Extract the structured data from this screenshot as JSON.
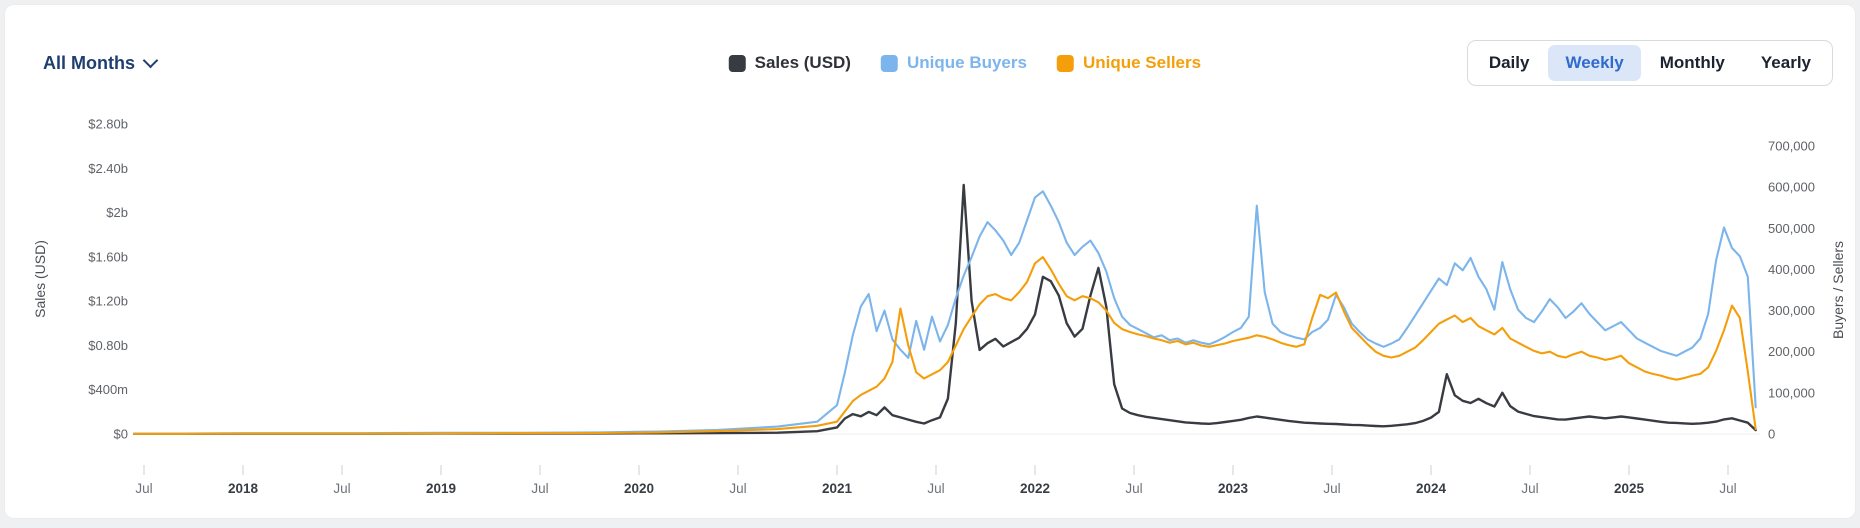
{
  "colors": {
    "accent_blue": "#2f6bcc",
    "active_button_bg": "#dbe6f8",
    "navy": "#1e3f6f",
    "sales_line": "#383c42",
    "buyers_line": "#7cb5ec",
    "sellers_line": "#f59e0b"
  },
  "header": {
    "filter": {
      "label": "All Months"
    },
    "legend": [
      {
        "name": "Sales (USD)",
        "color": "#383c42",
        "text_color": "#2f3237"
      },
      {
        "name": "Unique Buyers",
        "color": "#7cb5ec",
        "text_color": "#7cb5ec"
      },
      {
        "name": "Unique Sellers",
        "color": "#f59e0b",
        "text_color": "#f59e0b"
      }
    ],
    "range_buttons": [
      {
        "label": "Daily",
        "active": false
      },
      {
        "label": "Weekly",
        "active": true
      },
      {
        "label": "Monthly",
        "active": false
      },
      {
        "label": "Yearly",
        "active": false
      }
    ]
  },
  "chart_data": {
    "type": "line",
    "interval": "weekly",
    "grid": false,
    "legend_position": "top",
    "x_unit": "decimal_year",
    "x_range": [
      2017.45,
      2025.66
    ],
    "left_axis": {
      "title": "Sales (USD)",
      "unit": "million_usd",
      "max_value": 2800,
      "ticks": [
        {
          "label": "$0",
          "value": 0
        },
        {
          "label": "$400m",
          "value": 400
        },
        {
          "label": "$0.80b",
          "value": 800
        },
        {
          "label": "$1.20b",
          "value": 1200
        },
        {
          "label": "$1.60b",
          "value": 1600
        },
        {
          "label": "$2b",
          "value": 2000
        },
        {
          "label": "$2.40b",
          "value": 2400
        },
        {
          "label": "$2.80b",
          "value": 2800
        }
      ]
    },
    "right_axis": {
      "title": "Buyers / Sellers",
      "unit": "count_thousands",
      "max_value": 700,
      "ticks": [
        {
          "label": "0",
          "value": 0
        },
        {
          "label": "100,000",
          "value": 100
        },
        {
          "label": "200,000",
          "value": 200
        },
        {
          "label": "300,000",
          "value": 300
        },
        {
          "label": "400,000",
          "value": 400
        },
        {
          "label": "500,000",
          "value": 500
        },
        {
          "label": "600,000",
          "value": 600
        },
        {
          "label": "700,000",
          "value": 700
        }
      ]
    },
    "x_ticks": [
      {
        "label": "Jul",
        "t": 2017.5,
        "year": false
      },
      {
        "label": "2018",
        "t": 2018,
        "year": true
      },
      {
        "label": "Jul",
        "t": 2018.5,
        "year": false
      },
      {
        "label": "2019",
        "t": 2019,
        "year": true
      },
      {
        "label": "Jul",
        "t": 2019.5,
        "year": false
      },
      {
        "label": "2020",
        "t": 2020,
        "year": true
      },
      {
        "label": "Jul",
        "t": 2020.5,
        "year": false
      },
      {
        "label": "2021",
        "t": 2021,
        "year": true
      },
      {
        "label": "Jul",
        "t": 2021.5,
        "year": false
      },
      {
        "label": "2022",
        "t": 2022,
        "year": true
      },
      {
        "label": "Jul",
        "t": 2022.5,
        "year": false
      },
      {
        "label": "2023",
        "t": 2023,
        "year": true
      },
      {
        "label": "Jul",
        "t": 2023.5,
        "year": false
      },
      {
        "label": "2024",
        "t": 2024,
        "year": true
      },
      {
        "label": "Jul",
        "t": 2024.5,
        "year": false
      },
      {
        "label": "2025",
        "t": 2025,
        "year": true
      },
      {
        "label": "Jul",
        "t": 2025.5,
        "year": false
      }
    ],
    "x": [
      2017.45,
      2017.7,
      2018,
      2018.3,
      2018.6,
      2019,
      2019.4,
      2019.8,
      2020.1,
      2020.4,
      2020.7,
      2020.9,
      2021,
      2021.04,
      2021.08,
      2021.12,
      2021.16,
      2021.2,
      2021.24,
      2021.28,
      2021.32,
      2021.36,
      2021.4,
      2021.44,
      2021.48,
      2021.52,
      2021.56,
      2021.6,
      2021.64,
      2021.68,
      2021.72,
      2021.76,
      2021.8,
      2021.84,
      2021.88,
      2021.92,
      2021.96,
      2022,
      2022.04,
      2022.08,
      2022.12,
      2022.16,
      2022.2,
      2022.24,
      2022.28,
      2022.32,
      2022.36,
      2022.4,
      2022.44,
      2022.48,
      2022.52,
      2022.56,
      2022.6,
      2022.64,
      2022.68,
      2022.72,
      2022.76,
      2022.8,
      2022.84,
      2022.88,
      2022.92,
      2022.96,
      2023,
      2023.04,
      2023.08,
      2023.12,
      2023.16,
      2023.2,
      2023.24,
      2023.28,
      2023.32,
      2023.36,
      2023.4,
      2023.44,
      2023.48,
      2023.52,
      2023.56,
      2023.6,
      2023.64,
      2023.68,
      2023.72,
      2023.76,
      2023.8,
      2023.84,
      2023.88,
      2023.92,
      2023.96,
      2024,
      2024.04,
      2024.08,
      2024.12,
      2024.16,
      2024.2,
      2024.24,
      2024.28,
      2024.32,
      2024.36,
      2024.4,
      2024.44,
      2024.48,
      2024.52,
      2024.56,
      2024.6,
      2024.64,
      2024.68,
      2024.72,
      2024.76,
      2024.8,
      2024.84,
      2024.88,
      2024.92,
      2024.96,
      2025,
      2025.04,
      2025.08,
      2025.12,
      2025.16,
      2025.2,
      2025.24,
      2025.28,
      2025.32,
      2025.36,
      2025.4,
      2025.44,
      2025.48,
      2025.52,
      2025.56,
      2025.6,
      2025.64
    ],
    "series": [
      {
        "name": "Sales (USD)",
        "axis": "left",
        "color": "#383c42",
        "values": [
          2,
          2,
          3,
          3,
          3,
          4,
          4,
          5,
          6,
          8,
          12,
          25,
          60,
          140,
          180,
          160,
          200,
          170,
          240,
          170,
          150,
          130,
          110,
          95,
          125,
          150,
          320,
          1000,
          2250,
          1200,
          760,
          820,
          860,
          790,
          830,
          870,
          950,
          1080,
          1420,
          1380,
          1250,
          1000,
          880,
          950,
          1250,
          1500,
          1150,
          450,
          230,
          190,
          170,
          155,
          145,
          135,
          125,
          115,
          105,
          100,
          95,
          92,
          98,
          108,
          118,
          128,
          145,
          158,
          148,
          138,
          128,
          118,
          110,
          102,
          98,
          95,
          92,
          90,
          86,
          82,
          80,
          76,
          72,
          70,
          74,
          80,
          88,
          98,
          118,
          148,
          200,
          540,
          350,
          300,
          280,
          318,
          278,
          248,
          372,
          252,
          202,
          182,
          162,
          152,
          142,
          132,
          130,
          140,
          150,
          158,
          150,
          142,
          150,
          158,
          150,
          140,
          130,
          120,
          110,
          102,
          100,
          96,
          92,
          96,
          102,
          112,
          132,
          142,
          122,
          102,
          35
        ]
      },
      {
        "name": "Unique Buyers",
        "axis": "right",
        "color": "#7cb5ec",
        "values": [
          1,
          1,
          2,
          2,
          2,
          3,
          3,
          4,
          6,
          10,
          18,
          30,
          70,
          150,
          240,
          310,
          340,
          250,
          300,
          230,
          205,
          185,
          275,
          205,
          285,
          225,
          265,
          330,
          385,
          430,
          480,
          515,
          495,
          470,
          435,
          465,
          520,
          575,
          590,
          555,
          515,
          465,
          435,
          455,
          470,
          440,
          395,
          330,
          285,
          265,
          255,
          245,
          235,
          240,
          228,
          232,
          222,
          228,
          222,
          218,
          226,
          236,
          248,
          258,
          285,
          555,
          345,
          268,
          248,
          240,
          234,
          230,
          248,
          258,
          278,
          338,
          308,
          268,
          248,
          230,
          220,
          212,
          220,
          230,
          258,
          288,
          318,
          348,
          378,
          362,
          415,
          398,
          428,
          382,
          352,
          302,
          418,
          352,
          302,
          282,
          272,
          298,
          328,
          308,
          282,
          298,
          318,
          292,
          272,
          252,
          262,
          272,
          252,
          232,
          222,
          212,
          202,
          196,
          190,
          200,
          210,
          232,
          292,
          422,
          502,
          452,
          432,
          382,
          65
        ]
      },
      {
        "name": "Unique Sellers",
        "axis": "right",
        "color": "#f59e0b",
        "values": [
          0.5,
          0.5,
          1,
          1,
          1,
          1.5,
          2,
          2.5,
          4,
          7,
          12,
          20,
          30,
          55,
          80,
          95,
          105,
          115,
          135,
          175,
          305,
          215,
          150,
          135,
          145,
          155,
          175,
          215,
          255,
          285,
          315,
          335,
          340,
          330,
          325,
          345,
          370,
          415,
          430,
          400,
          365,
          335,
          325,
          335,
          330,
          320,
          300,
          270,
          255,
          248,
          242,
          238,
          232,
          228,
          222,
          226,
          218,
          222,
          215,
          212,
          216,
          220,
          226,
          230,
          234,
          240,
          236,
          230,
          222,
          216,
          212,
          218,
          282,
          338,
          330,
          344,
          298,
          258,
          238,
          218,
          200,
          190,
          186,
          190,
          200,
          210,
          228,
          248,
          268,
          278,
          288,
          272,
          282,
          262,
          252,
          242,
          258,
          232,
          222,
          212,
          202,
          196,
          200,
          190,
          186,
          194,
          200,
          190,
          186,
          180,
          184,
          190,
          172,
          162,
          152,
          146,
          142,
          136,
          132,
          136,
          142,
          146,
          162,
          202,
          252,
          312,
          282,
          152,
          12
        ]
      }
    ]
  }
}
